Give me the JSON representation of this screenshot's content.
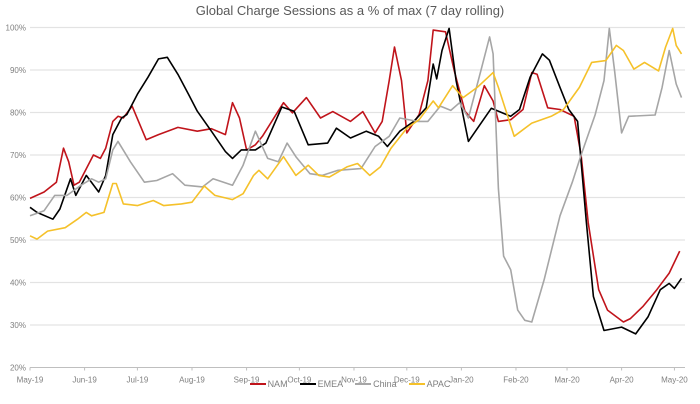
{
  "chart_data": {
    "type": "line",
    "title": "Global Charge Sessions as a % of max (7 day rolling)",
    "xlabel": "",
    "ylabel": "",
    "xlim": [
      "2019-05-01",
      "2020-05-07"
    ],
    "ylim": [
      20,
      100
    ],
    "grid": true,
    "legend_position": "bottom",
    "y_ticks": [
      20,
      30,
      40,
      50,
      60,
      70,
      80,
      90,
      100
    ],
    "y_tick_labels": [
      "20%",
      "30%",
      "40%",
      "50%",
      "60%",
      "70%",
      "80%",
      "90%",
      "100%"
    ],
    "x_ticks": [
      "2019-05-01",
      "2019-06-01",
      "2019-07-01",
      "2019-08-01",
      "2019-09-01",
      "2019-10-01",
      "2019-11-01",
      "2019-12-01",
      "2020-01-01",
      "2020-02-01",
      "2020-03-01",
      "2020-04-01",
      "2020-05-01"
    ],
    "x_tick_labels": [
      "May-19",
      "Jun-19",
      "Jul-19",
      "Aug-19",
      "Sep-19",
      "Oct-19",
      "Nov-19",
      "Dec-19",
      "Jan-20",
      "Feb-20",
      "Mar-20",
      "Apr-20",
      "May-20"
    ],
    "series": [
      {
        "name": "NAM",
        "color": "#c0141b",
        "points": [
          [
            "2019-05-01",
            59.8
          ],
          [
            "2019-05-09",
            61.3
          ],
          [
            "2019-05-16",
            63.6
          ],
          [
            "2019-05-20",
            71.6
          ],
          [
            "2019-05-23",
            68.4
          ],
          [
            "2019-05-26",
            62.9
          ],
          [
            "2019-05-29",
            63.6
          ],
          [
            "2019-06-06",
            70
          ],
          [
            "2019-06-10",
            69.2
          ],
          [
            "2019-06-13",
            71.6
          ],
          [
            "2019-06-17",
            77.9
          ],
          [
            "2019-06-20",
            79.1
          ],
          [
            "2019-06-23",
            78.7
          ],
          [
            "2019-06-28",
            81.5
          ],
          [
            "2019-07-06",
            73.6
          ],
          [
            "2019-07-13",
            74.8
          ],
          [
            "2019-07-24",
            76.5
          ],
          [
            "2019-08-04",
            75.6
          ],
          [
            "2019-08-12",
            76.2
          ],
          [
            "2019-08-20",
            74.8
          ],
          [
            "2019-08-24",
            82.3
          ],
          [
            "2019-08-28",
            78.7
          ],
          [
            "2019-09-01",
            71.2
          ],
          [
            "2019-09-06",
            72.4
          ],
          [
            "2019-09-10",
            74.4
          ],
          [
            "2019-09-22",
            82.3
          ],
          [
            "2019-09-27",
            79.9
          ],
          [
            "2019-10-05",
            83.5
          ],
          [
            "2019-10-13",
            78.7
          ],
          [
            "2019-10-20",
            80.2
          ],
          [
            "2019-10-30",
            77.9
          ],
          [
            "2019-11-06",
            80.2
          ],
          [
            "2019-11-13",
            75.2
          ],
          [
            "2019-11-17",
            77.9
          ],
          [
            "2019-11-21",
            87.5
          ],
          [
            "2019-11-24",
            95.4
          ],
          [
            "2019-11-28",
            87.5
          ],
          [
            "2019-12-01",
            75.2
          ],
          [
            "2019-12-08",
            79.5
          ],
          [
            "2019-12-13",
            87.5
          ],
          [
            "2019-12-16",
            99.4
          ],
          [
            "2019-12-23",
            99
          ],
          [
            "2019-12-28",
            89.8
          ],
          [
            "2020-01-03",
            80.3
          ],
          [
            "2020-01-08",
            77.9
          ],
          [
            "2020-01-14",
            86.3
          ],
          [
            "2020-01-19",
            82.7
          ],
          [
            "2020-01-22",
            77.9
          ],
          [
            "2020-01-29",
            78.3
          ],
          [
            "2020-02-05",
            80.7
          ],
          [
            "2020-02-10",
            89.4
          ],
          [
            "2020-02-13",
            89
          ],
          [
            "2020-02-19",
            81.1
          ],
          [
            "2020-02-26",
            80.7
          ],
          [
            "2020-03-05",
            79.1
          ],
          [
            "2020-03-09",
            70
          ],
          [
            "2020-03-13",
            54.1
          ],
          [
            "2020-03-19",
            38.3
          ],
          [
            "2020-03-24",
            33.5
          ],
          [
            "2020-04-02",
            30.7
          ],
          [
            "2020-04-06",
            31.5
          ],
          [
            "2020-04-13",
            34.3
          ],
          [
            "2020-04-21",
            38.3
          ],
          [
            "2020-04-28",
            42.2
          ],
          [
            "2020-05-04",
            47.4
          ]
        ]
      },
      {
        "name": "EMEA",
        "color": "#000000",
        "points": [
          [
            "2019-05-01",
            57.7
          ],
          [
            "2019-05-05",
            56.5
          ],
          [
            "2019-05-14",
            54.9
          ],
          [
            "2019-05-18",
            57.3
          ],
          [
            "2019-05-24",
            64.4
          ],
          [
            "2019-05-27",
            60.5
          ],
          [
            "2019-06-02",
            65.2
          ],
          [
            "2019-06-09",
            61.3
          ],
          [
            "2019-06-13",
            65.2
          ],
          [
            "2019-06-17",
            74.8
          ],
          [
            "2019-06-22",
            78.7
          ],
          [
            "2019-06-25",
            79.5
          ],
          [
            "2019-07-01",
            84.3
          ],
          [
            "2019-07-07",
            88.3
          ],
          [
            "2019-07-13",
            92.6
          ],
          [
            "2019-07-18",
            93
          ],
          [
            "2019-07-24",
            89
          ],
          [
            "2019-07-30",
            84.3
          ],
          [
            "2019-08-04",
            80.3
          ],
          [
            "2019-08-12",
            75.6
          ],
          [
            "2019-08-20",
            70.8
          ],
          [
            "2019-08-24",
            69.2
          ],
          [
            "2019-08-29",
            71.2
          ],
          [
            "2019-09-06",
            71.2
          ],
          [
            "2019-09-12",
            72.8
          ],
          [
            "2019-09-21",
            81.3
          ],
          [
            "2019-09-28",
            80.3
          ],
          [
            "2019-10-06",
            72.4
          ],
          [
            "2019-10-17",
            72.8
          ],
          [
            "2019-10-22",
            76.3
          ],
          [
            "2019-10-30",
            74
          ],
          [
            "2019-11-08",
            75.6
          ],
          [
            "2019-11-15",
            74.4
          ],
          [
            "2019-11-20",
            72
          ],
          [
            "2019-11-27",
            75.6
          ],
          [
            "2019-12-05",
            77.9
          ],
          [
            "2019-12-12",
            81.1
          ],
          [
            "2019-12-16",
            91.4
          ],
          [
            "2019-12-18",
            87.9
          ],
          [
            "2019-12-21",
            94.6
          ],
          [
            "2019-12-25",
            99.8
          ],
          [
            "2019-12-29",
            87.5
          ],
          [
            "2020-01-05",
            73.2
          ],
          [
            "2020-01-18",
            81
          ],
          [
            "2020-01-29",
            79.1
          ],
          [
            "2020-02-03",
            80.7
          ],
          [
            "2020-02-09",
            88.3
          ],
          [
            "2020-02-16",
            93.8
          ],
          [
            "2020-02-20",
            92.3
          ],
          [
            "2020-02-26",
            85.9
          ],
          [
            "2020-03-02",
            80.7
          ],
          [
            "2020-03-07",
            77.9
          ],
          [
            "2020-03-12",
            54.1
          ],
          [
            "2020-03-16",
            36.7
          ],
          [
            "2020-03-22",
            28.7
          ],
          [
            "2020-04-01",
            29.5
          ],
          [
            "2020-04-09",
            27.9
          ],
          [
            "2020-04-16",
            31.9
          ],
          [
            "2020-04-23",
            38.3
          ],
          [
            "2020-04-28",
            39.8
          ],
          [
            "2020-05-01",
            38.6
          ],
          [
            "2020-05-05",
            41
          ]
        ]
      },
      {
        "name": "China",
        "color": "#a6a6a6",
        "points": [
          [
            "2019-05-01",
            55.7
          ],
          [
            "2019-05-09",
            56.9
          ],
          [
            "2019-05-15",
            60.5
          ],
          [
            "2019-05-22",
            60.5
          ],
          [
            "2019-05-30",
            62.9
          ],
          [
            "2019-06-05",
            64.4
          ],
          [
            "2019-06-09",
            63.6
          ],
          [
            "2019-06-13",
            64.4
          ],
          [
            "2019-06-17",
            71.2
          ],
          [
            "2019-06-20",
            73.2
          ],
          [
            "2019-06-27",
            68.4
          ],
          [
            "2019-07-05",
            63.6
          ],
          [
            "2019-07-12",
            64
          ],
          [
            "2019-07-21",
            65.6
          ],
          [
            "2019-07-28",
            62.9
          ],
          [
            "2019-08-07",
            62.5
          ],
          [
            "2019-08-13",
            64.4
          ],
          [
            "2019-08-24",
            62.9
          ],
          [
            "2019-08-30",
            67.6
          ],
          [
            "2019-09-06",
            75.6
          ],
          [
            "2019-09-13",
            69.2
          ],
          [
            "2019-09-19",
            68.4
          ],
          [
            "2019-09-24",
            72.8
          ],
          [
            "2019-09-29",
            69.6
          ],
          [
            "2019-10-07",
            65.6
          ],
          [
            "2019-10-14",
            65.2
          ],
          [
            "2019-10-23",
            66.4
          ],
          [
            "2019-11-05",
            66.8
          ],
          [
            "2019-11-13",
            72
          ],
          [
            "2019-11-21",
            74.4
          ],
          [
            "2019-11-27",
            78.7
          ],
          [
            "2019-12-07",
            77.9
          ],
          [
            "2019-12-13",
            77.9
          ],
          [
            "2019-12-20",
            81.5
          ],
          [
            "2019-12-26",
            80.5
          ],
          [
            "2019-12-31",
            82.3
          ],
          [
            "2020-01-05",
            78.7
          ],
          [
            "2020-01-12",
            89.8
          ],
          [
            "2020-01-17",
            97.8
          ],
          [
            "2020-01-19",
            93.8
          ],
          [
            "2020-01-22",
            62.1
          ],
          [
            "2020-01-25",
            46.2
          ],
          [
            "2020-01-29",
            43
          ],
          [
            "2020-02-02",
            33.5
          ],
          [
            "2020-02-06",
            31.1
          ],
          [
            "2020-02-10",
            30.7
          ],
          [
            "2020-02-17",
            40.6
          ],
          [
            "2020-02-26",
            55.7
          ],
          [
            "2020-03-04",
            63.6
          ],
          [
            "2020-03-09",
            70
          ],
          [
            "2020-03-17",
            79.5
          ],
          [
            "2020-03-22",
            87.5
          ],
          [
            "2020-03-25",
            99.8
          ],
          [
            "2020-03-28",
            89.8
          ],
          [
            "2020-04-01",
            75.2
          ],
          [
            "2020-04-05",
            79.1
          ],
          [
            "2020-04-20",
            79.4
          ],
          [
            "2020-04-24",
            85.9
          ],
          [
            "2020-04-28",
            94.6
          ],
          [
            "2020-05-02",
            86.7
          ],
          [
            "2020-05-05",
            83.5
          ]
        ]
      },
      {
        "name": "APAC",
        "color": "#f5c12a",
        "points": [
          [
            "2019-05-01",
            51
          ],
          [
            "2019-05-05",
            50.2
          ],
          [
            "2019-05-11",
            52.1
          ],
          [
            "2019-05-21",
            52.9
          ],
          [
            "2019-05-28",
            54.9
          ],
          [
            "2019-06-02",
            56.5
          ],
          [
            "2019-06-05",
            55.7
          ],
          [
            "2019-06-12",
            56.5
          ],
          [
            "2019-06-17",
            63.3
          ],
          [
            "2019-06-19",
            63.3
          ],
          [
            "2019-06-23",
            58.5
          ],
          [
            "2019-07-01",
            58.1
          ],
          [
            "2019-07-10",
            59.3
          ],
          [
            "2019-07-16",
            58.1
          ],
          [
            "2019-07-26",
            58.5
          ],
          [
            "2019-08-01",
            58.9
          ],
          [
            "2019-08-08",
            62.7
          ],
          [
            "2019-08-14",
            60.5
          ],
          [
            "2019-08-24",
            59.5
          ],
          [
            "2019-08-30",
            60.9
          ],
          [
            "2019-09-05",
            65.2
          ],
          [
            "2019-09-08",
            66.4
          ],
          [
            "2019-09-13",
            64.4
          ],
          [
            "2019-09-22",
            69.6
          ],
          [
            "2019-09-29",
            65.2
          ],
          [
            "2019-10-06",
            67.6
          ],
          [
            "2019-10-12",
            65.2
          ],
          [
            "2019-10-18",
            64.8
          ],
          [
            "2019-10-28",
            67.2
          ],
          [
            "2019-11-03",
            68
          ],
          [
            "2019-11-10",
            65.2
          ],
          [
            "2019-11-16",
            67.2
          ],
          [
            "2019-11-22",
            71.6
          ],
          [
            "2019-12-01",
            76.3
          ],
          [
            "2019-12-08",
            78.3
          ],
          [
            "2019-12-16",
            82.7
          ],
          [
            "2019-12-19",
            81.1
          ],
          [
            "2019-12-27",
            86.3
          ],
          [
            "2020-01-02",
            83.5
          ],
          [
            "2020-01-10",
            85.9
          ],
          [
            "2020-01-19",
            89.4
          ],
          [
            "2020-01-22",
            85.9
          ],
          [
            "2020-01-31",
            74.4
          ],
          [
            "2020-02-10",
            77.5
          ],
          [
            "2020-02-21",
            79.1
          ],
          [
            "2020-02-28",
            80.7
          ],
          [
            "2020-03-08",
            85.9
          ],
          [
            "2020-03-15",
            91.8
          ],
          [
            "2020-03-23",
            92.2
          ],
          [
            "2020-03-29",
            95.8
          ],
          [
            "2020-04-02",
            94.6
          ],
          [
            "2020-04-08",
            90.2
          ],
          [
            "2020-04-14",
            91.8
          ],
          [
            "2020-04-22",
            89.8
          ],
          [
            "2020-04-26",
            95.4
          ],
          [
            "2020-04-30",
            99.8
          ],
          [
            "2020-05-02",
            95.8
          ],
          [
            "2020-05-05",
            93.8
          ]
        ]
      }
    ]
  }
}
